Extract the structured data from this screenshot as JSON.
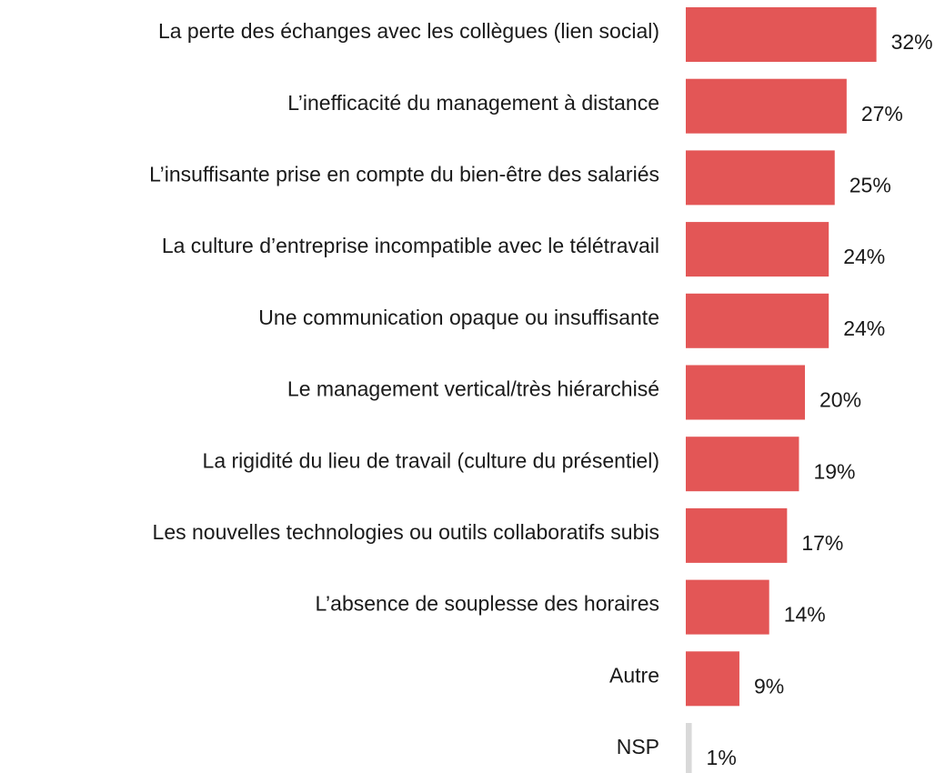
{
  "chart_data": {
    "type": "barh",
    "categories": [
      "La perte des échanges avec les collègues (lien social)",
      "L’inefficacité du management à distance",
      "L’insuffisante prise en compte du bien-être des salariés",
      "La culture d’entreprise incompatible avec le télétravail",
      "Une communication opaque ou insuffisante",
      "Le management vertical/très hiérarchisé",
      "La rigidité du lieu de travail (culture du présentiel)",
      "Les nouvelles technologies ou outils collaboratifs subis",
      "L’absence de souplesse des horaires",
      "Autre",
      "NSP"
    ],
    "values": [
      32,
      27,
      25,
      24,
      24,
      20,
      19,
      17,
      14,
      9,
      1
    ],
    "value_labels": [
      "32%",
      "27%",
      "25%",
      "24%",
      "24%",
      "20%",
      "19%",
      "17%",
      "14%",
      "9%",
      "1%"
    ],
    "colors": [
      "#e35656",
      "#e35656",
      "#e35656",
      "#e35656",
      "#e35656",
      "#e35656",
      "#e35656",
      "#e35656",
      "#e35656",
      "#e35656",
      "#d9d9d9"
    ]
  }
}
